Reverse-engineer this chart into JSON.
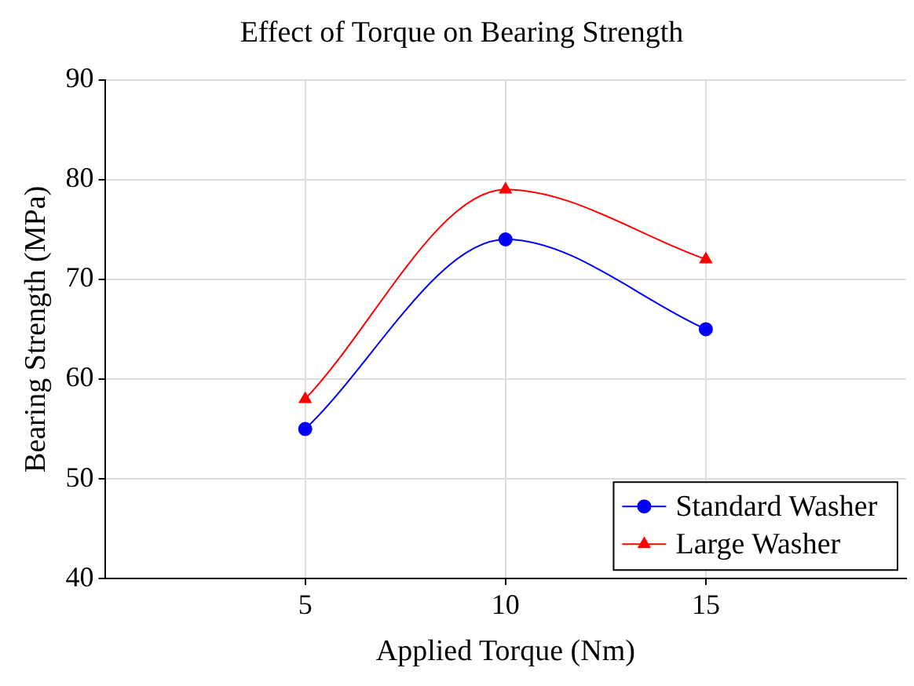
{
  "chart_data": {
    "type": "line",
    "title": "Effect of Torque on Bearing Strength",
    "xlabel": "Applied Torque (Nm)",
    "ylabel": "Bearing Strength (MPa)",
    "x": [
      5,
      10,
      15
    ],
    "series": [
      {
        "name": "Standard Washer",
        "color": "#0000ff",
        "values": [
          55,
          74,
          65
        ],
        "marker": "circle"
      },
      {
        "name": "Large Washer",
        "color": "#ff0000",
        "values": [
          58,
          79,
          72
        ],
        "marker": "triangle"
      }
    ],
    "xlim": [
      0,
      20
    ],
    "xticks": [
      5,
      10,
      15
    ],
    "ylim": [
      40,
      90
    ],
    "yticks": [
      40,
      50,
      60,
      70,
      80,
      90
    ],
    "grid": true,
    "legend": "bottom right"
  }
}
